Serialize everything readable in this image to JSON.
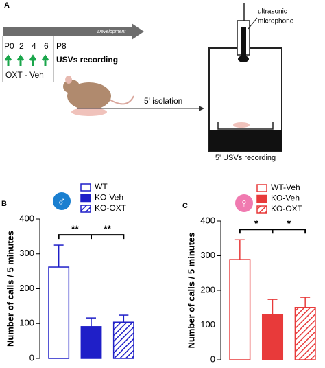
{
  "panel_a": {
    "label": "A",
    "timeline": "Development",
    "days": [
      "P0",
      "2",
      "4",
      "6"
    ],
    "end_day": "P8",
    "recording": "USVs recording",
    "treatment": "OXT - Veh",
    "isolation": "5' isolation",
    "microphone": [
      "ultrasonic",
      "microphone"
    ],
    "chamber": "5' USVs recording"
  },
  "chart_data": [
    {
      "type": "bar",
      "panel": "B",
      "symbol": "♂",
      "ylabel": "Number of calls / 5 minutes",
      "ylim": [
        0,
        400
      ],
      "yticks": [
        0,
        100,
        200,
        300,
        400
      ],
      "significance": [
        "**",
        "**"
      ],
      "series": [
        {
          "name": "WT",
          "color": "#1f1fc8",
          "style": "hollow",
          "values": [
            262
          ],
          "errors": [
            63
          ]
        },
        {
          "name": "KO-Veh",
          "color": "#1f1fc8",
          "style": "solid",
          "values": [
            91
          ],
          "errors": [
            25
          ]
        },
        {
          "name": "KO-OXT",
          "color": "#1f1fc8",
          "style": "hatched",
          "values": [
            104
          ],
          "errors": [
            20
          ]
        }
      ]
    },
    {
      "type": "bar",
      "panel": "C",
      "symbol": "♀",
      "ylabel": "Number of calls / 5 minutes",
      "ylim": [
        0,
        400
      ],
      "yticks": [
        0,
        100,
        200,
        300,
        400
      ],
      "significance": [
        "*",
        "*"
      ],
      "series": [
        {
          "name": "WT-Veh",
          "color": "#e83a3a",
          "style": "hollow",
          "values": [
            289
          ],
          "errors": [
            57
          ]
        },
        {
          "name": "KO-Veh",
          "color": "#e83a3a",
          "style": "solid",
          "values": [
            131
          ],
          "errors": [
            43
          ]
        },
        {
          "name": "KO-OXT",
          "color": "#e83a3a",
          "style": "hatched",
          "values": [
            151
          ],
          "errors": [
            29
          ]
        }
      ]
    }
  ]
}
